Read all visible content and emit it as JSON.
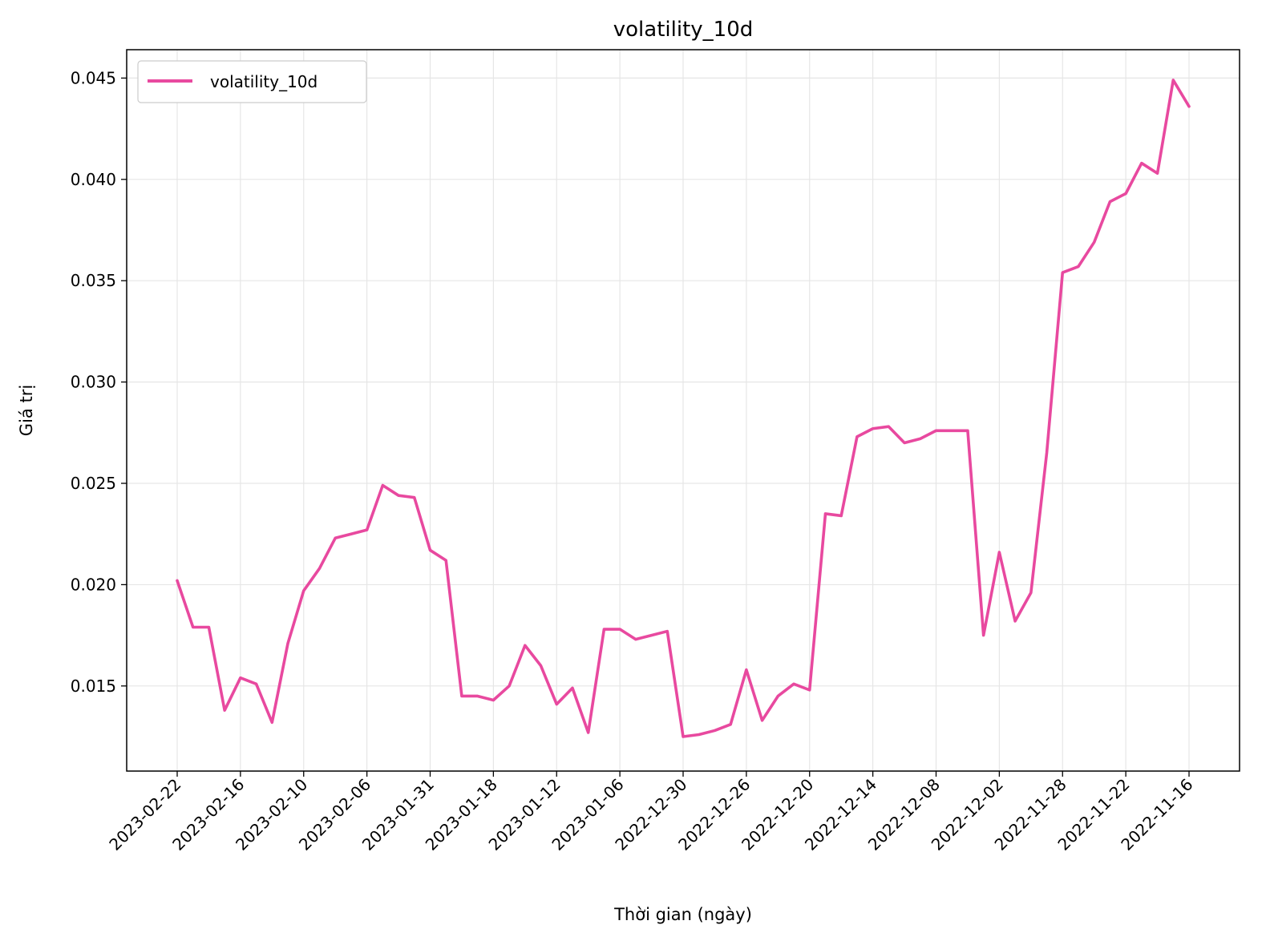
{
  "chart_data": {
    "type": "line",
    "title": "volatility_10d",
    "xlabel": "Thời gian (ngày)",
    "ylabel": "Giá trị",
    "x_tick_labels": [
      "2023-02-22",
      "2023-02-16",
      "2023-02-10",
      "2023-02-06",
      "2023-01-31",
      "2023-01-18",
      "2023-01-12",
      "2023-01-06",
      "2022-12-30",
      "2022-12-26",
      "2022-12-20",
      "2022-12-14",
      "2022-12-08",
      "2022-12-02",
      "2022-11-28",
      "2022-11-22",
      "2022-11-16"
    ],
    "y_ticks": [
      0.015,
      0.02,
      0.025,
      0.03,
      0.035,
      0.04,
      0.045
    ],
    "y_tick_labels": [
      "0.015",
      "0.020",
      "0.025",
      "0.030",
      "0.035",
      "0.040",
      "0.045"
    ],
    "ylim": [
      0.0108,
      0.0464
    ],
    "grid": true,
    "legend_position": "top-left",
    "series": [
      {
        "name": "volatility_10d",
        "color": "#e8499f",
        "values": [
          0.0202,
          0.0179,
          0.0179,
          0.0138,
          0.0154,
          0.0151,
          0.0132,
          0.0171,
          0.0197,
          0.0208,
          0.0223,
          0.0225,
          0.0227,
          0.0249,
          0.0244,
          0.0243,
          0.0217,
          0.0212,
          0.0145,
          0.0145,
          0.0143,
          0.015,
          0.017,
          0.016,
          0.0141,
          0.0149,
          0.0127,
          0.0178,
          0.0178,
          0.0173,
          0.0175,
          0.0177,
          0.0125,
          0.0126,
          0.0128,
          0.0131,
          0.0158,
          0.0133,
          0.0145,
          0.0151,
          0.0148,
          0.0235,
          0.0234,
          0.0273,
          0.0277,
          0.0278,
          0.027,
          0.0272,
          0.0276,
          0.0276,
          0.0276,
          0.0175,
          0.0216,
          0.0182,
          0.0196,
          0.0265,
          0.0354,
          0.0357,
          0.0369,
          0.0389,
          0.0393,
          0.0408,
          0.0403,
          0.0449,
          0.0436
        ]
      }
    ]
  }
}
